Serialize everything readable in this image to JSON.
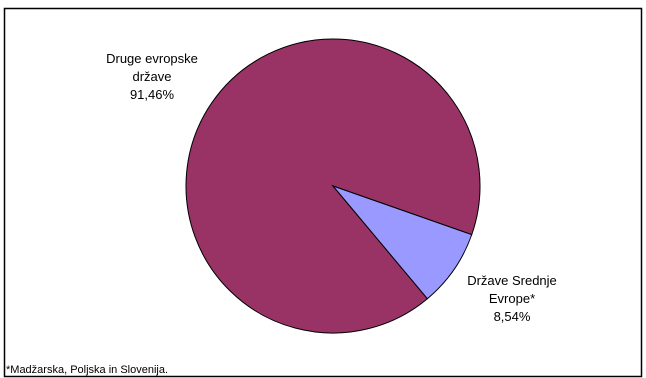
{
  "chart_data": {
    "type": "pie",
    "categories": [
      "Druge evropske države",
      "Države Srednje Evrope*"
    ],
    "values": [
      91.46,
      8.54
    ],
    "value_labels": [
      "91,46%",
      "8,54%"
    ],
    "colors": [
      "#993366",
      "#9999ff"
    ],
    "footnote": "*Madžarska, Poljska in Slovenija."
  }
}
